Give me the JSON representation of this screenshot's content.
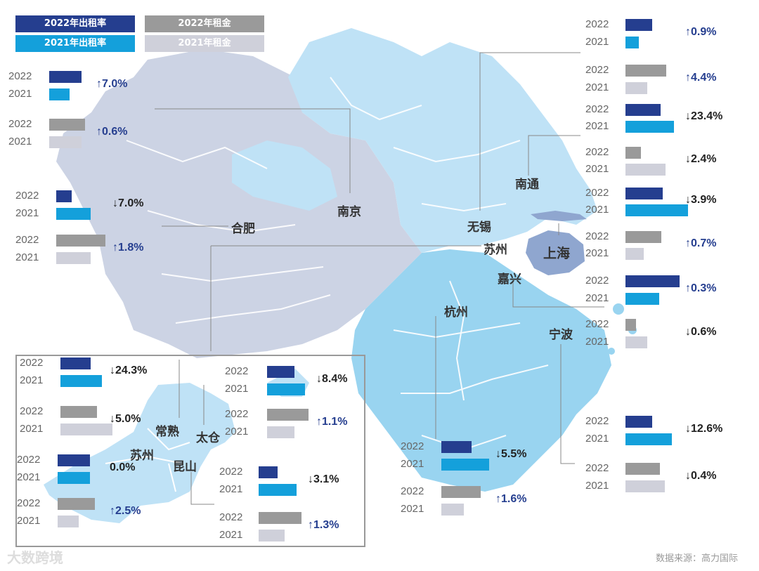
{
  "legend": {
    "occ2022": "2022年出租率",
    "rent2022": "2022年租金",
    "occ2021": "2021年出租率",
    "rent2021": "2021年租金"
  },
  "colors": {
    "occ2022": "#253e8f",
    "occ2021": "#14a0db",
    "rent2022": "#9a9a9a",
    "rent2021": "#cfd0da",
    "up": "#253e8f",
    "down": "#222222"
  },
  "source": "数据来源：高力国际",
  "watermark": "大数跨境",
  "city_labels": {
    "nanjing": "南京",
    "hefei": "合肥",
    "wuxi": "无锡",
    "suzhou": "苏州",
    "nantong": "南通",
    "shanghai": "上海",
    "jiaxing": "嘉兴",
    "hangzhou": "杭州",
    "ningbo": "宁波",
    "changshu": "常熟",
    "taicang": "太仓",
    "suzhou_inset": "苏州",
    "kunshan": "昆山"
  },
  "chart_data": {
    "type": "bar",
    "title": "",
    "series_names": [
      "2022年出租率",
      "2021年出租率",
      "2022年租金",
      "2021年租金"
    ],
    "note": "Bar lengths are relative (no axis printed); values are estimated relative magnitudes on a 0-100 scale.",
    "cities": [
      {
        "id": "nanjing",
        "occ_2022": 48,
        "occ_2021": 31,
        "occ_change": "↑7.0%",
        "occ_dir": "up",
        "rent_2022": 54,
        "rent_2021": 48,
        "rent_change": "↑0.6%",
        "rent_dir": "up"
      },
      {
        "id": "hefei",
        "occ_2022": 23,
        "occ_2021": 52,
        "occ_change": "↓7.0%",
        "occ_dir": "down",
        "rent_2022": 74,
        "rent_2021": 52,
        "rent_change": "↑1.8%",
        "rent_dir": "up"
      },
      {
        "id": "wuxi",
        "occ_2022": 40,
        "occ_2021": 20,
        "occ_change": "↑0.9%",
        "occ_dir": "up",
        "rent_2022": 61,
        "rent_2021": 33,
        "rent_change": "↑4.4%",
        "rent_dir": "up"
      },
      {
        "id": "nantong",
        "occ_2022": 53,
        "occ_2021": 73,
        "occ_change": "↓23.4%",
        "occ_dir": "down",
        "rent_2022": 23,
        "rent_2021": 60,
        "rent_change": "↓2.4%",
        "rent_dir": "down"
      },
      {
        "id": "shanghai",
        "occ_2022": 56,
        "occ_2021": 94,
        "occ_change": "↓3.9%",
        "occ_dir": "down",
        "rent_2022": 54,
        "rent_2021": 27,
        "rent_change": "↑0.7%",
        "rent_dir": "up"
      },
      {
        "id": "ningbo_east",
        "occ_2022": 81,
        "occ_2021": 50,
        "occ_change": "↑0.3%",
        "occ_dir": "up",
        "rent_2022": 16,
        "rent_2021": 33,
        "rent_change": "↓0.6%",
        "rent_dir": "down"
      },
      {
        "id": "ningbo",
        "occ_2022": 40,
        "occ_2021": 69,
        "occ_change": "↓12.6%",
        "occ_dir": "down",
        "rent_2022": 52,
        "rent_2021": 59,
        "rent_change": "↓0.4%",
        "rent_dir": "down"
      },
      {
        "id": "hangzhou",
        "occ_2022": 45,
        "occ_2021": 72,
        "occ_change": "↓5.5%",
        "occ_dir": "down",
        "rent_2022": 59,
        "rent_2021": 34,
        "rent_change": "↑1.6%",
        "rent_dir": "up"
      },
      {
        "id": "changshu",
        "occ_2022": 45,
        "occ_2021": 62,
        "occ_change": "↓24.3%",
        "occ_dir": "down",
        "rent_2022": 55,
        "rent_2021": 78,
        "rent_change": "↓5.0%",
        "rent_dir": "down"
      },
      {
        "id": "taicang",
        "occ_2022": 41,
        "occ_2021": 57,
        "occ_change": "↓8.4%",
        "occ_dir": "down",
        "rent_2022": 62,
        "rent_2021": 41,
        "rent_change": "↑1.1%",
        "rent_dir": "up"
      },
      {
        "id": "suzhou",
        "occ_2022": 48,
        "occ_2021": 48,
        "occ_change": "0.0%",
        "occ_dir": "flat",
        "rent_2022": 56,
        "rent_2021": 32,
        "rent_change": "↑2.5%",
        "rent_dir": "up"
      },
      {
        "id": "kunshan",
        "occ_2022": 28,
        "occ_2021": 57,
        "occ_change": "↓3.1%",
        "occ_dir": "down",
        "rent_2022": 64,
        "rent_2021": 39,
        "rent_change": "↑1.3%",
        "rent_dir": "up"
      }
    ],
    "year_labels": [
      "2022",
      "2021",
      "2022",
      "2021"
    ]
  }
}
